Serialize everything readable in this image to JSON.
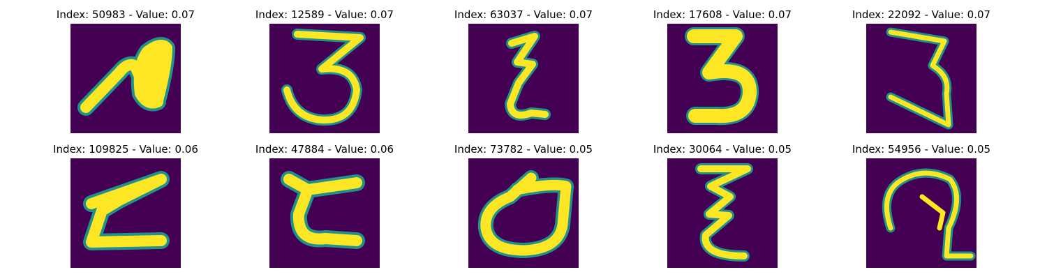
{
  "colors": {
    "background": "#440154",
    "stroke_core": "#fde725",
    "stroke_edge": "#21918c"
  },
  "panels": [
    {
      "title": "Index: 50983 - Value: 0.07",
      "glyph": "glyph-a"
    },
    {
      "title": "Index: 12589 - Value: 0.07",
      "glyph": "glyph-3-open"
    },
    {
      "title": "Index: 63037 - Value: 0.07",
      "glyph": "glyph-epsilon-narrow"
    },
    {
      "title": "Index: 17608 - Value: 0.07",
      "glyph": "glyph-3-bold"
    },
    {
      "title": "Index: 22092 - Value: 0.07",
      "glyph": "glyph-3-thin"
    },
    {
      "title": "Index: 109825 - Value: 0.06",
      "glyph": "glyph-z-slant"
    },
    {
      "title": "Index: 47884 - Value: 0.06",
      "glyph": "glyph-c-bracket"
    },
    {
      "title": "Index: 73782 - Value: 0.05",
      "glyph": "glyph-d-loop"
    },
    {
      "title": "Index: 30064 - Value: 0.05",
      "glyph": "glyph-epsilon-tall"
    },
    {
      "title": "Index: 54956 - Value: 0.05",
      "glyph": "glyph-q-curl"
    }
  ]
}
